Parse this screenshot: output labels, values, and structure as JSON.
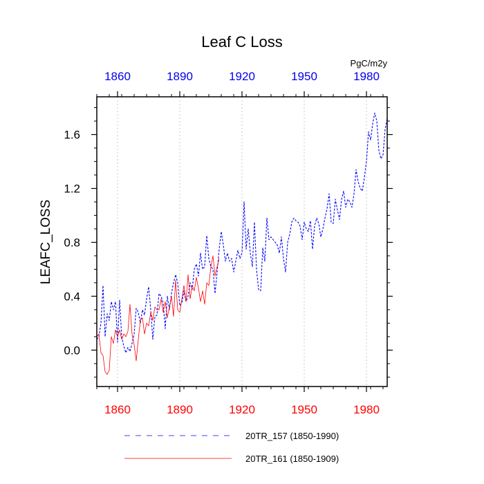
{
  "chart_data": {
    "type": "line",
    "title": "Leaf C Loss",
    "units": "PgC/m2y",
    "ylabel": "LEAFC_LOSS",
    "xlabel": "",
    "xlim": [
      1850,
      1990
    ],
    "ylim": [
      -0.27,
      1.88
    ],
    "x_ticks": [
      1860,
      1890,
      1920,
      1950,
      1980
    ],
    "x_tick_labels": [
      "1860",
      "1890",
      "1920",
      "1950",
      "1980"
    ],
    "y_ticks": [
      0.0,
      0.4,
      0.8,
      1.2,
      1.6
    ],
    "y_tick_labels": [
      "0.0",
      "0.4",
      "0.8",
      "1.2",
      "1.6"
    ],
    "colors": {
      "top_axis": "#0000ee",
      "bottom_axis": "#ff0000",
      "grid": "#c8c8c8",
      "axis": "#000000"
    },
    "series": [
      {
        "name": "20TR_157 (1850-1990)",
        "legend": "20TR_157 (1850-1990)",
        "color": "#0000ff",
        "dash": "dashed",
        "x": [
          1850,
          1851,
          1852,
          1853,
          1854,
          1855,
          1856,
          1857,
          1858,
          1859,
          1860,
          1861,
          1862,
          1863,
          1864,
          1865,
          1866,
          1867,
          1868,
          1869,
          1870,
          1871,
          1872,
          1873,
          1874,
          1875,
          1876,
          1877,
          1878,
          1879,
          1880,
          1881,
          1882,
          1883,
          1884,
          1885,
          1886,
          1887,
          1888,
          1889,
          1890,
          1891,
          1892,
          1893,
          1894,
          1895,
          1896,
          1897,
          1898,
          1899,
          1900,
          1901,
          1902,
          1903,
          1904,
          1905,
          1906,
          1907,
          1908,
          1909,
          1910,
          1911,
          1912,
          1913,
          1914,
          1915,
          1916,
          1917,
          1918,
          1919,
          1920,
          1921,
          1922,
          1923,
          1924,
          1925,
          1926,
          1927,
          1928,
          1929,
          1930,
          1931,
          1932,
          1933,
          1934,
          1935,
          1936,
          1937,
          1938,
          1939,
          1940,
          1941,
          1942,
          1943,
          1944,
          1945,
          1946,
          1947,
          1948,
          1949,
          1950,
          1951,
          1952,
          1953,
          1954,
          1955,
          1956,
          1957,
          1958,
          1959,
          1960,
          1961,
          1962,
          1963,
          1964,
          1965,
          1966,
          1967,
          1968,
          1969,
          1970,
          1971,
          1972,
          1973,
          1974,
          1975,
          1976,
          1977,
          1978,
          1979,
          1980,
          1981,
          1982,
          1983,
          1984,
          1985,
          1986,
          1987,
          1988,
          1989,
          1990
        ],
        "values": [
          0.08,
          0.1,
          0.2,
          0.48,
          0.1,
          0.27,
          0.22,
          0.36,
          0.3,
          0.36,
          0.06,
          0.37,
          0.1,
          0.03,
          -0.02,
          0.02,
          -0.01,
          0.05,
          0.12,
          0.31,
          0.28,
          0.2,
          0.3,
          0.26,
          0.38,
          0.47,
          0.3,
          0.08,
          0.25,
          0.26,
          0.42,
          0.4,
          0.35,
          0.16,
          0.4,
          0.3,
          0.42,
          0.5,
          0.56,
          0.5,
          0.33,
          0.35,
          0.44,
          0.36,
          0.4,
          0.5,
          0.45,
          0.6,
          0.64,
          0.55,
          0.72,
          0.6,
          0.62,
          0.85,
          0.68,
          0.62,
          0.6,
          0.42,
          0.58,
          0.75,
          0.88,
          0.78,
          0.66,
          0.72,
          0.66,
          0.68,
          0.58,
          0.66,
          0.74,
          0.68,
          0.72,
          1.1,
          0.75,
          0.9,
          0.72,
          0.62,
          0.95,
          0.6,
          0.45,
          0.44,
          0.76,
          0.66,
          0.98,
          0.82,
          0.84,
          0.82,
          0.8,
          0.78,
          0.72,
          0.84,
          0.68,
          0.58,
          0.8,
          0.86,
          0.95,
          0.98,
          0.96,
          0.95,
          0.92,
          0.82,
          0.95,
          0.9,
          0.88,
          0.96,
          0.75,
          0.92,
          0.98,
          0.94,
          0.84,
          0.9,
          0.98,
          1.05,
          1.16,
          0.95,
          0.94,
          1.12,
          1.04,
          0.97,
          1.12,
          1.18,
          1.06,
          1.12,
          1.1,
          1.06,
          1.16,
          1.34,
          1.25,
          1.2,
          1.18,
          1.28,
          1.4,
          1.62,
          1.56,
          1.68,
          1.76,
          1.7,
          1.48,
          1.42,
          1.45,
          1.64,
          1.72
        ],
        "max_label": ""
      },
      {
        "name": "20TR_161 (1850-1909)",
        "legend": "20TR_161 (1850-1909)",
        "color": "#ff0000",
        "dash": "solid",
        "x": [
          1850,
          1851,
          1852,
          1853,
          1854,
          1855,
          1856,
          1857,
          1858,
          1859,
          1860,
          1861,
          1862,
          1863,
          1864,
          1865,
          1866,
          1867,
          1868,
          1869,
          1870,
          1871,
          1872,
          1873,
          1874,
          1875,
          1876,
          1877,
          1878,
          1879,
          1880,
          1881,
          1882,
          1883,
          1884,
          1885,
          1886,
          1887,
          1888,
          1889,
          1890,
          1891,
          1892,
          1893,
          1894,
          1895,
          1896,
          1897,
          1898,
          1899,
          1900,
          1901,
          1902,
          1903,
          1904,
          1905,
          1906,
          1907,
          1908,
          1909
        ],
        "values": [
          0.1,
          0.12,
          -0.02,
          -0.04,
          -0.16,
          -0.18,
          -0.15,
          0.1,
          0.05,
          0.15,
          0.1,
          0.15,
          0.08,
          0.12,
          0.1,
          0.14,
          0.34,
          0.12,
          0.04,
          -0.08,
          0.08,
          0.22,
          0.24,
          0.12,
          0.2,
          0.18,
          0.28,
          0.22,
          0.32,
          0.3,
          0.3,
          0.38,
          0.28,
          0.36,
          0.24,
          0.32,
          0.4,
          0.25,
          0.52,
          0.3,
          0.28,
          0.38,
          0.48,
          0.36,
          0.56,
          0.38,
          0.48,
          0.44,
          0.54,
          0.46,
          0.36,
          0.44,
          0.34,
          0.5,
          0.48,
          0.62,
          0.7,
          0.55,
          0.62,
          0.68
        ]
      }
    ],
    "legend_position": "bottom"
  }
}
